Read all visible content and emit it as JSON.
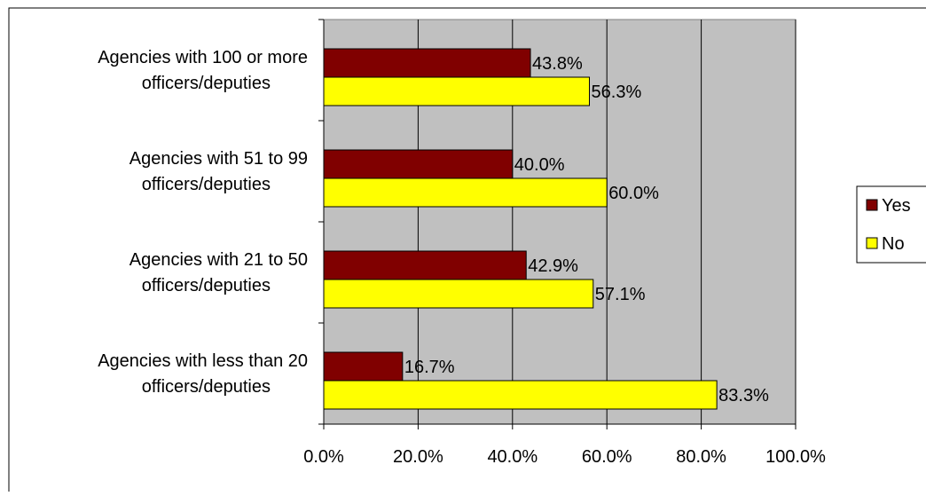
{
  "chart_data": {
    "type": "bar",
    "orientation": "horizontal",
    "categories": [
      "Agencies with 100 or more officers/deputies",
      "Agencies with 51 to 99 officers/deputies",
      "Agencies with 21 to 50 officers/deputies",
      "Agencies with less than 20 officers/deputies"
    ],
    "category_lines": [
      [
        "Agencies with 100 or more",
        "officers/deputies"
      ],
      [
        "Agencies with 51 to 99",
        "officers/deputies"
      ],
      [
        "Agencies with 21 to 50",
        "officers/deputies"
      ],
      [
        "Agencies with less than 20",
        "officers/deputies"
      ]
    ],
    "series": [
      {
        "name": "Yes",
        "values": [
          43.8,
          40.0,
          42.9,
          16.7
        ],
        "labels": [
          "43.8%",
          "40.0%",
          "42.9%",
          "16.7%"
        ],
        "color": "#800000"
      },
      {
        "name": "No",
        "values": [
          56.3,
          60.0,
          57.1,
          83.3
        ],
        "labels": [
          "56.3%",
          "60.0%",
          "57.1%",
          "83.3%"
        ],
        "color": "#ffff00"
      }
    ],
    "xlim": [
      0,
      100
    ],
    "x_ticks": [
      0,
      20,
      40,
      60,
      80,
      100
    ],
    "x_tick_labels": [
      "0.0%",
      "20.0%",
      "40.0%",
      "60.0%",
      "80.0%",
      "100.0%"
    ],
    "title": "",
    "xlabel": "",
    "ylabel": "",
    "grid": true,
    "plot_background": "#c0c0c0",
    "legend_position": "right"
  }
}
